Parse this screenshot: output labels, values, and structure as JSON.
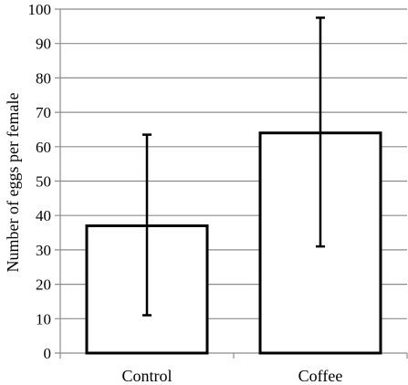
{
  "chart_data": {
    "type": "bar",
    "title": "",
    "xlabel": "",
    "ylabel": "Number of eggs per female",
    "categories": [
      "Control",
      "Coffee"
    ],
    "values": [
      37,
      64
    ],
    "error_bars": [
      {
        "low": 11,
        "high": 63.5
      },
      {
        "low": 31,
        "high": 97.5
      }
    ],
    "ylim": [
      0,
      100
    ],
    "yticks": [
      0,
      10,
      20,
      30,
      40,
      50,
      60,
      70,
      80,
      90,
      100
    ],
    "ytick_labels": [
      "0",
      "10",
      "20",
      "30",
      "40",
      "50",
      "60",
      "70",
      "80",
      "90",
      "100"
    ],
    "grid": true,
    "legend": "none",
    "colors": {
      "bar_fill": "#ffffff",
      "bar_stroke": "#000000",
      "grid": "#8c8c8c",
      "axis": "#8c8c8c"
    }
  }
}
